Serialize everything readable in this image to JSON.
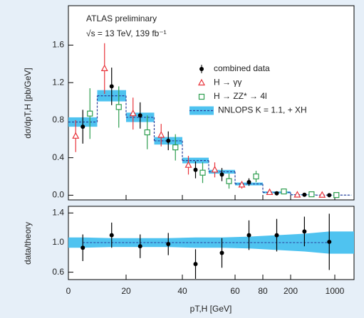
{
  "chart_data": [
    {
      "type": "points-with-theory",
      "annotations": [
        "ATLAS preliminary",
        "√s = 13 TeV, 139 fb⁻¹"
      ],
      "ylabel": "dσ/dpT,H [pb/GeV]",
      "ylim": [
        -0.05,
        2.02
      ],
      "yticks": [
        {
          "value": 0,
          "label": "0.0"
        },
        0.4,
        0.8,
        1.2,
        1.6
      ],
      "x": [
        5,
        15,
        25,
        35,
        45,
        55,
        70,
        140,
        450,
        900
      ],
      "series": [
        {
          "name": "combined data",
          "color": "#000000",
          "marker": "circle",
          "values": [
            0.73,
            1.16,
            0.85,
            0.58,
            0.27,
            0.22,
            0.14,
            0.02,
            0.005,
            0.0005
          ],
          "errors": [
            0.18,
            0.2,
            0.14,
            0.1,
            0.09,
            0.07,
            0.04,
            0.01,
            0.003,
            0.002
          ]
        },
        {
          "name": "H → γγ",
          "color": "#e8333a",
          "marker": "triangle",
          "values": [
            0.63,
            1.35,
            0.87,
            0.64,
            0.32,
            0.27,
            0.11,
            0.03,
            0.003,
            0.001
          ],
          "errors": [
            0.17,
            0.27,
            0.17,
            0.12,
            0.1,
            0.08,
            0.04,
            0.01,
            0.004,
            0.002
          ]
        },
        {
          "name": "H → ZZ* → 4l",
          "color": "#2e9e4f",
          "marker": "square",
          "values": [
            0.87,
            0.94,
            0.67,
            0.51,
            0.24,
            0.15,
            0.2,
            0.04,
            0.01,
            0.002
          ],
          "errors": [
            0.27,
            0.22,
            0.18,
            0.14,
            0.11,
            0.08,
            0.06,
            0.02,
            0.006,
            0.003
          ]
        }
      ],
      "theory": {
        "name": "NNLOPS K = 1.1, + XH",
        "color": "#4fc3f0",
        "line_color": "#2a3f9a",
        "bins": [
          0,
          10,
          20,
          30,
          40,
          50,
          60,
          80,
          200,
          650,
          1300
        ],
        "values": [
          0.78,
          1.06,
          0.83,
          0.58,
          0.37,
          0.25,
          0.12,
          0.03,
          0.005,
          0.001
        ],
        "errors": [
          0.05,
          0.06,
          0.05,
          0.04,
          0.03,
          0.02,
          0.015,
          0.01,
          0.003,
          0.001
        ]
      }
    },
    {
      "type": "ratio",
      "ylabel": "data/theory",
      "xlabel": "pT,H [GeV]",
      "xlim": [
        0,
        1300
      ],
      "xticks": [
        0,
        20,
        40,
        60,
        80,
        200,
        1000
      ],
      "ylim": [
        0.5,
        1.49
      ],
      "yticks": [
        0.6,
        {
          "value": 1,
          "label": "1.0"
        },
        1.4
      ],
      "x": [
        5,
        15,
        25,
        35,
        45,
        55,
        70,
        140,
        450,
        900
      ],
      "values": [
        0.93,
        1.1,
        0.95,
        0.98,
        0.71,
        0.86,
        1.1,
        1.1,
        1.15,
        1.01
      ],
      "errors": [
        0.18,
        0.17,
        0.16,
        0.15,
        0.2,
        0.2,
        0.2,
        0.22,
        0.2,
        0.38
      ],
      "color": "#000000",
      "theory": {
        "color": "#4fc3f0",
        "line_color": "#2a3f9a",
        "values": [
          1,
          1,
          1,
          1,
          1,
          1,
          1,
          1,
          1,
          1
        ],
        "errors": [
          0.07,
          0.06,
          0.06,
          0.06,
          0.07,
          0.07,
          0.08,
          0.1,
          0.12,
          0.15
        ]
      }
    }
  ]
}
